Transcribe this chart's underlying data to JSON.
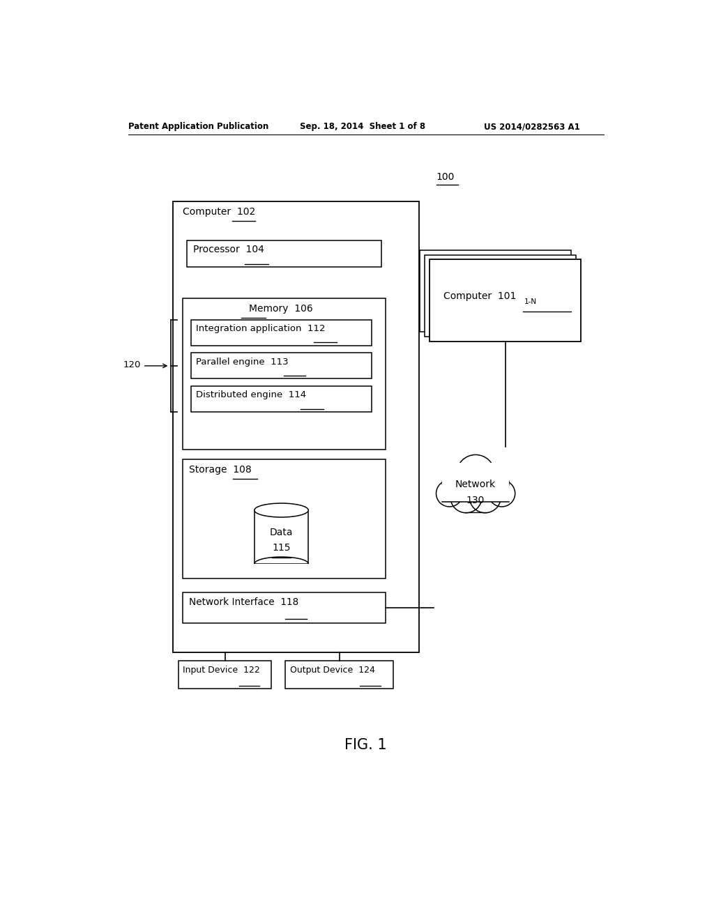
{
  "bg_color": "#ffffff",
  "header_left": "Patent Application Publication",
  "header_mid": "Sep. 18, 2014  Sheet 1 of 8",
  "header_right": "US 2014/0282563 A1",
  "fig_label": "FIG. 1"
}
